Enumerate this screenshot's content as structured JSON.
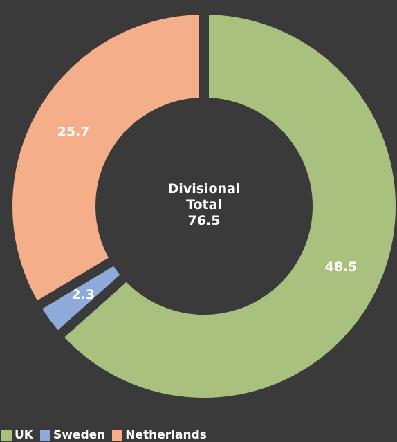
{
  "chart_data": {
    "type": "donut",
    "categories": [
      "UK",
      "Sweden",
      "Netherlands"
    ],
    "values": [
      48.5,
      2.3,
      25.7
    ],
    "colors": [
      "#a9c07e",
      "#8eaadb",
      "#f4ae8a"
    ],
    "center_label": "Divisional Total",
    "center_value": 76.5,
    "legend": "bottom-left"
  }
}
